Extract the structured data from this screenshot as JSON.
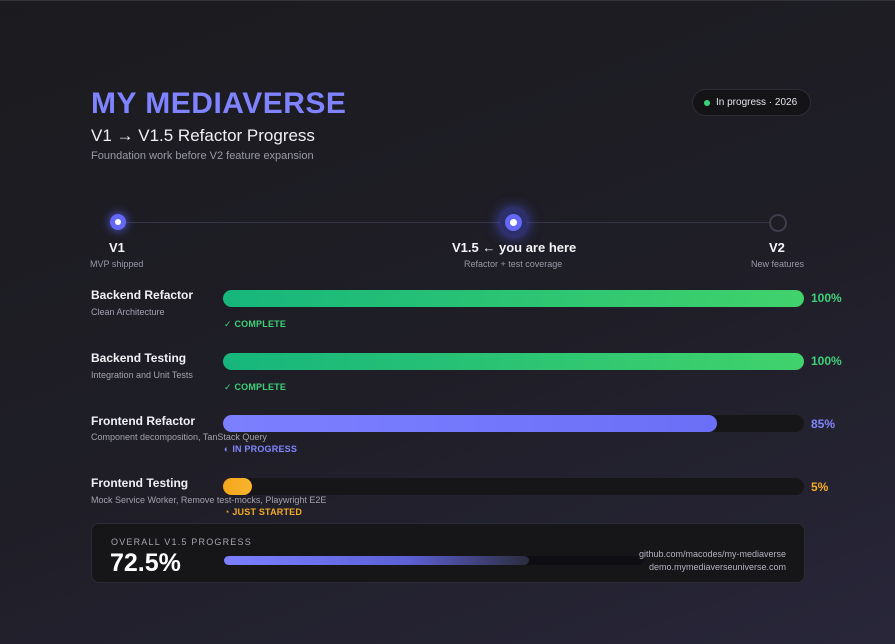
{
  "header": {
    "brand": "MY MEDIAVERSE",
    "title": "V1 → V1.5 Refactor Progress",
    "subtitle": "Foundation work before V2 feature expansion",
    "status": "In progress · 2026",
    "status_color": "#37d67a"
  },
  "milestones": [
    {
      "label": "V1",
      "sub": "MVP shipped",
      "state": "done"
    },
    {
      "label": "V1.5 ← you are here",
      "sub": "Refactor + test coverage",
      "state": "current"
    },
    {
      "label": "V2",
      "sub": "New features",
      "state": "future"
    }
  ],
  "tasks": [
    {
      "name": "Backend Refactor",
      "desc": "Clean Architecture",
      "progress": 100,
      "percent_label": "100%",
      "badge": "✓ COMPLETE",
      "status": "complete"
    },
    {
      "name": "Backend Testing",
      "desc": "Integration and Unit Tests",
      "progress": 100,
      "percent_label": "100%",
      "badge": "✓ COMPLETE",
      "status": "complete"
    },
    {
      "name": "Frontend Refactor",
      "desc": "Component decomposition, TanStack Query",
      "progress": 85,
      "percent_label": "85%",
      "badge": "◐ IN PROGRESS",
      "status": "in-progress"
    },
    {
      "name": "Frontend Testing",
      "desc": "Mock Service Worker, Remove test-mocks, Playwright E2E",
      "progress": 5,
      "percent_label": "5%",
      "badge": "◔ JUST STARTED",
      "status": "started"
    }
  ],
  "overall": {
    "label": "OVERALL V1.5 PROGRESS",
    "value": "72.5%",
    "progress": 72.5
  },
  "links": {
    "repo": "github.com/macodes/my-mediaverse",
    "demo": "demo.mymediaverseuniverse.com"
  },
  "colors": {
    "accent": "#7f83ff",
    "complete": "#3fd17a",
    "in_progress": "#8286ff",
    "started": "#f6ac22"
  }
}
